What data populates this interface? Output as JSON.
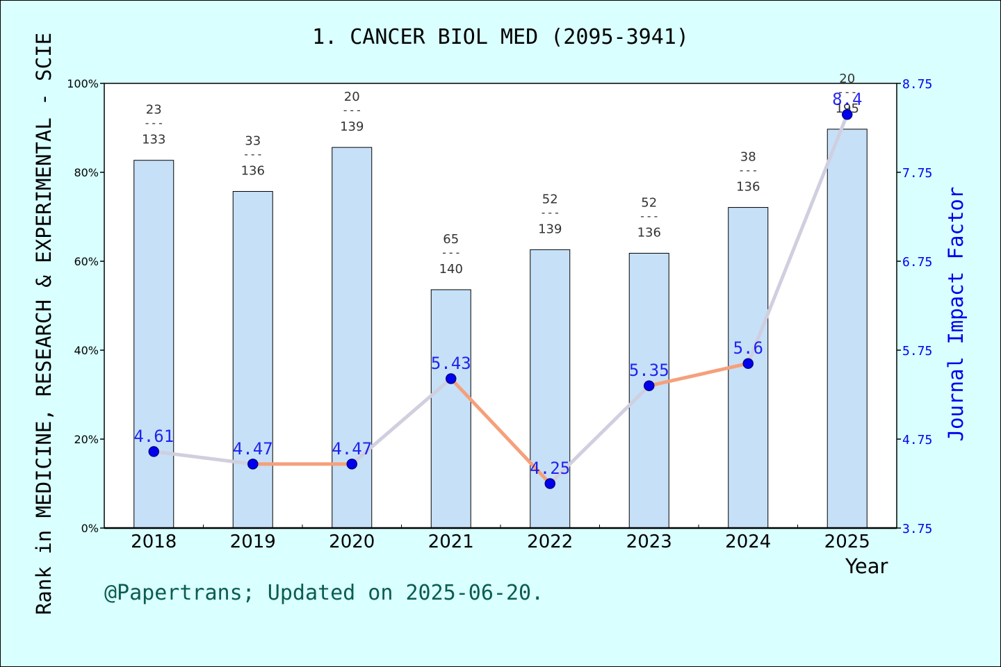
{
  "title": "1. CANCER BIOL MED (2095-3941)",
  "footnote": "@Papertrans; Updated on 2025-06-20.",
  "chart_data": {
    "type": "bar",
    "title": "1. CANCER BIOL MED (2095-3941)",
    "xlabel": "Year",
    "ylabel": "Rank in MEDICINE, RESEARCH & EXPERIMENTAL - SCIE",
    "ylabel_right": "Journal Impact Factor",
    "categories": [
      "2018",
      "2019",
      "2020",
      "2021",
      "2022",
      "2023",
      "2024",
      "2025"
    ],
    "ylim": [
      0,
      100
    ],
    "ylim_right": [
      3.75,
      8.75
    ],
    "yticks": [
      "0%",
      "20%",
      "40%",
      "60%",
      "80%",
      "100%"
    ],
    "yticks_right": [
      "3.75",
      "4.75",
      "5.75",
      "6.75",
      "7.75",
      "8.75"
    ],
    "bars": {
      "values": [
        82.7,
        75.7,
        85.6,
        53.6,
        62.6,
        61.8,
        72.1,
        89.7
      ],
      "rank_labels": [
        {
          "rank": "23",
          "sep": "---",
          "total": "133"
        },
        {
          "rank": "33",
          "sep": "---",
          "total": "136"
        },
        {
          "rank": "20",
          "sep": "---",
          "total": "139"
        },
        {
          "rank": "65",
          "sep": "---",
          "total": "140"
        },
        {
          "rank": "52",
          "sep": "---",
          "total": "139"
        },
        {
          "rank": "52",
          "sep": "---",
          "total": "136"
        },
        {
          "rank": "38",
          "sep": "---",
          "total": "136"
        },
        {
          "rank": "20",
          "sep": "---",
          "total": "195"
        }
      ],
      "color": "#c6e0f8"
    },
    "line": {
      "values": [
        4.61,
        4.47,
        4.47,
        5.43,
        4.25,
        5.35,
        5.6,
        8.4
      ],
      "labels": [
        "4.61",
        "4.47",
        "4.47",
        "5.43",
        "4.25",
        "5.35",
        "5.6",
        "8.4"
      ],
      "color": "#f5a07a",
      "marker_color": "#0000ee"
    },
    "grid": false,
    "legend": "none"
  }
}
